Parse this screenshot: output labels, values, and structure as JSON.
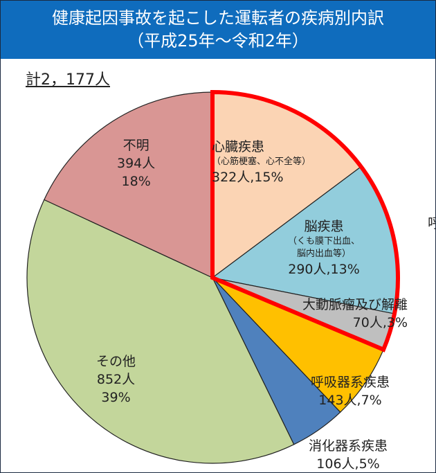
{
  "title": {
    "line1": "健康起因事故を起こした運転者の疾病別内訳",
    "line2": "（平成25年～令和2年）"
  },
  "chart_data": {
    "type": "pie",
    "total_label": "計2，177人",
    "start": "12 o'clock, clockwise",
    "highlight": {
      "slices": [
        0,
        1,
        2
      ],
      "outline_color": "#FF0000"
    },
    "slices": [
      {
        "name": "心臓疾患",
        "note": "（心筋梗塞、心不全等）",
        "value": 322,
        "label": "322人,15%",
        "color": "#FBD4B4"
      },
      {
        "name": "脳疾患",
        "note": "（くも膜下出血、",
        "note2": "脳内出血等）",
        "value": 290,
        "label": "290人,13%",
        "color": "#92CDDC"
      },
      {
        "name": "大動脈瘤及び解離",
        "value": 70,
        "label": "70人,3%",
        "color": "#BFBFBF"
      },
      {
        "name": "呼吸器系疾患",
        "value": 143,
        "label": "143人,7%",
        "color": "#FFC000"
      },
      {
        "name": "消化器系疾患",
        "value": 106,
        "label": "106人,5%",
        "color": "#4F81BD"
      },
      {
        "name": "その他",
        "value": 852,
        "label": "852人",
        "pct": "39%",
        "color": "#C3D69B"
      },
      {
        "name": "不明",
        "value": 394,
        "label": "394人",
        "pct": "18%",
        "color": "#D99694"
      }
    ]
  },
  "clipped_text": "呼"
}
